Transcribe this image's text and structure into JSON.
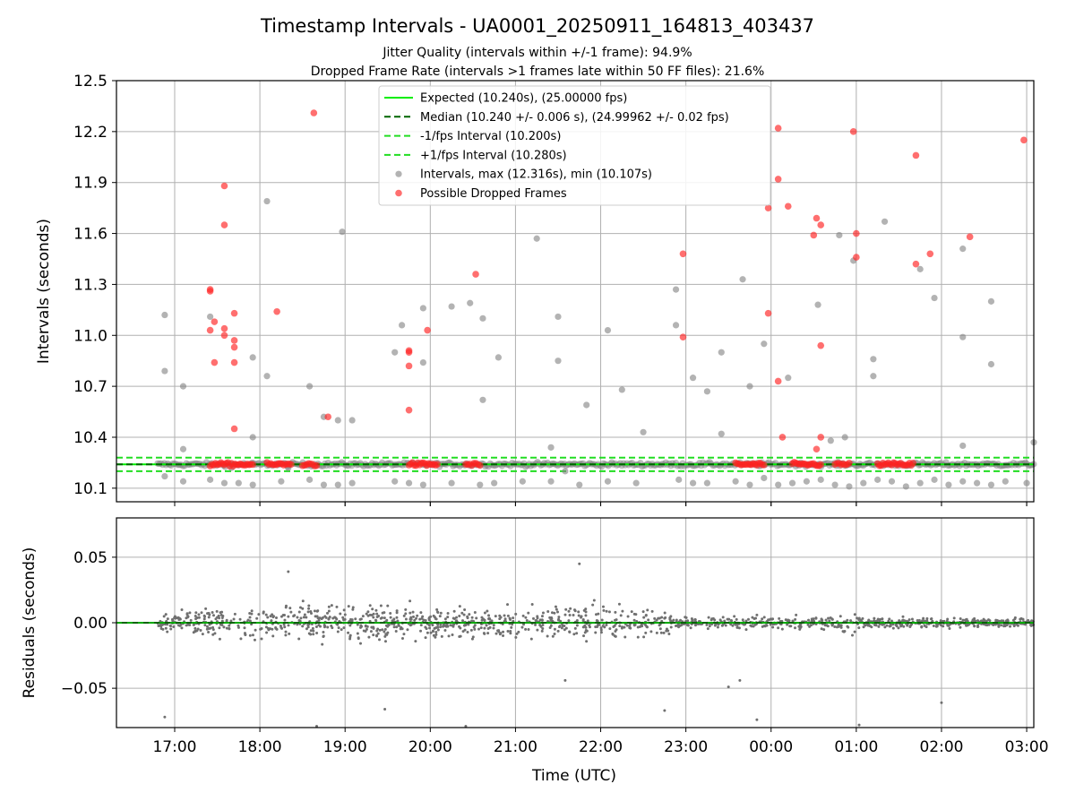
{
  "title": "Timestamp Intervals - UA0001_20250911_164813_403437",
  "subtitle_1": "Jitter Quality (intervals within +/-1 frame): 94.9%",
  "subtitle_2": "Dropped Frame Rate (intervals >1 frames late within 50 FF files): 21.6%",
  "colors": {
    "expected": "#00ee00",
    "median": "#006400",
    "interval_bounds": "#22dd22",
    "intervals": "#808080",
    "dropped": "#ff2222",
    "residuals": "#707070",
    "grid": "#b0b0b0"
  },
  "chart_data": [
    {
      "type": "scatter",
      "panel": "top",
      "ylabel": "Intervals (seconds)",
      "xlabel": "",
      "x_axis": "time",
      "xlim": [
        "16:19",
        "03:05"
      ],
      "ylim": [
        10.02,
        12.5
      ],
      "x_ticks": [
        "17:00",
        "18:00",
        "19:00",
        "20:00",
        "21:00",
        "22:00",
        "23:00",
        "00:00",
        "01:00",
        "02:00",
        "03:00"
      ],
      "y_ticks": [
        "10.1",
        "10.4",
        "10.7",
        "11.0",
        "11.3",
        "11.6",
        "11.9",
        "12.2",
        "12.5"
      ],
      "grid": true,
      "legend_position": "upper center",
      "legend": [
        {
          "label": "Expected (10.240s), (25.00000 fps)",
          "style": "line"
        },
        {
          "label": "Median (10.240 +/- 0.006 s), (24.99962 +/- 0.02 fps)",
          "style": "dashed-dark"
        },
        {
          "label": "-1/fps Interval (10.200s)",
          "style": "dashed"
        },
        {
          "label": "+1/fps Interval (10.280s)",
          "style": "dashed"
        },
        {
          "label": "Intervals, max (12.316s), min (10.107s)",
          "style": "gray-dot"
        },
        {
          "label": "Possible Dropped Frames",
          "style": "red-dot"
        }
      ],
      "reference_lines": {
        "expected": 10.24,
        "median": 10.24,
        "minus_1_fps": 10.2,
        "plus_1_fps": 10.28
      },
      "band": {
        "x_start": "16:48",
        "x_end": "03:05",
        "y_center": 10.24,
        "y_spread": 0.025
      },
      "dropped_clusters": [
        {
          "x_start": "17:25",
          "x_end": "17:55"
        },
        {
          "x_start": "18:05",
          "x_end": "18:22"
        },
        {
          "x_start": "18:30",
          "x_end": "18:40"
        },
        {
          "x_start": "19:45",
          "x_end": "20:05"
        },
        {
          "x_start": "20:25",
          "x_end": "20:35"
        },
        {
          "x_start": "23:35",
          "x_end": "23:55"
        },
        {
          "x_start": "00:15",
          "x_end": "00:35"
        },
        {
          "x_start": "00:45",
          "x_end": "00:55"
        },
        {
          "x_start": "01:15",
          "x_end": "01:40"
        }
      ],
      "intervals": [
        [
          "16:53",
          11.12
        ],
        [
          "16:53",
          10.79
        ],
        [
          "17:06",
          10.7
        ],
        [
          "17:06",
          10.33
        ],
        [
          "17:25",
          11.11
        ],
        [
          "17:40",
          10.22
        ],
        [
          "17:55",
          10.4
        ],
        [
          "17:55",
          10.87
        ],
        [
          "18:05",
          10.76
        ],
        [
          "18:05",
          11.79
        ],
        [
          "18:20",
          10.22
        ],
        [
          "18:35",
          10.7
        ],
        [
          "18:45",
          10.52
        ],
        [
          "18:55",
          10.5
        ],
        [
          "18:58",
          11.61
        ],
        [
          "19:05",
          10.5
        ],
        [
          "19:35",
          10.9
        ],
        [
          "19:40",
          11.06
        ],
        [
          "19:55",
          11.16
        ],
        [
          "19:55",
          10.84
        ],
        [
          "20:15",
          11.17
        ],
        [
          "20:28",
          11.19
        ],
        [
          "20:37",
          11.1
        ],
        [
          "20:37",
          10.62
        ],
        [
          "20:48",
          10.87
        ],
        [
          "21:15",
          11.57
        ],
        [
          "21:25",
          10.34
        ],
        [
          "21:30",
          11.11
        ],
        [
          "21:30",
          10.85
        ],
        [
          "21:35",
          10.2
        ],
        [
          "21:50",
          10.59
        ],
        [
          "22:05",
          11.03
        ],
        [
          "22:15",
          10.68
        ],
        [
          "22:30",
          10.43
        ],
        [
          "22:53",
          11.27
        ],
        [
          "22:53",
          11.06
        ],
        [
          "23:05",
          10.75
        ],
        [
          "23:15",
          10.67
        ],
        [
          "23:25",
          10.9
        ],
        [
          "23:25",
          10.42
        ],
        [
          "23:40",
          11.33
        ],
        [
          "23:45",
          10.7
        ],
        [
          "23:55",
          10.95
        ],
        [
          "00:12",
          10.75
        ],
        [
          "00:33",
          11.18
        ],
        [
          "00:42",
          10.38
        ],
        [
          "00:48",
          11.59
        ],
        [
          "00:52",
          10.4
        ],
        [
          "00:58",
          11.44
        ],
        [
          "01:12",
          10.86
        ],
        [
          "01:12",
          10.76
        ],
        [
          "01:20",
          11.67
        ],
        [
          "01:45",
          11.39
        ],
        [
          "01:55",
          11.22
        ],
        [
          "02:15",
          11.51
        ],
        [
          "02:15",
          10.99
        ],
        [
          "02:15",
          10.35
        ],
        [
          "02:35",
          11.2
        ],
        [
          "02:35",
          10.83
        ],
        [
          "03:05",
          10.37
        ]
      ],
      "dropped": [
        [
          "17:25",
          11.27
        ],
        [
          "17:25",
          11.26
        ],
        [
          "17:25",
          11.03
        ],
        [
          "17:28",
          11.08
        ],
        [
          "17:28",
          10.84
        ],
        [
          "17:35",
          11.88
        ],
        [
          "17:35",
          11.65
        ],
        [
          "17:35",
          11.04
        ],
        [
          "17:35",
          11.0
        ],
        [
          "17:42",
          11.13
        ],
        [
          "17:42",
          10.97
        ],
        [
          "17:42",
          10.93
        ],
        [
          "17:42",
          10.84
        ],
        [
          "17:42",
          10.45
        ],
        [
          "18:12",
          11.14
        ],
        [
          "18:38",
          12.31
        ],
        [
          "18:48",
          10.52
        ],
        [
          "19:45",
          10.91
        ],
        [
          "19:45",
          10.9
        ],
        [
          "19:45",
          10.82
        ],
        [
          "19:45",
          10.56
        ],
        [
          "19:58",
          11.03
        ],
        [
          "20:32",
          11.36
        ],
        [
          "22:58",
          11.48
        ],
        [
          "22:58",
          10.99
        ],
        [
          "23:58",
          11.75
        ],
        [
          "23:58",
          11.13
        ],
        [
          "00:05",
          12.22
        ],
        [
          "00:05",
          11.92
        ],
        [
          "00:05",
          10.73
        ],
        [
          "00:08",
          10.4
        ],
        [
          "00:12",
          11.76
        ],
        [
          "00:30",
          11.59
        ],
        [
          "00:32",
          11.69
        ],
        [
          "00:35",
          11.65
        ],
        [
          "00:35",
          10.94
        ],
        [
          "00:35",
          10.4
        ],
        [
          "00:32",
          10.33
        ],
        [
          "00:58",
          12.2
        ],
        [
          "01:00",
          11.6
        ],
        [
          "01:00",
          11.46
        ],
        [
          "01:42",
          11.42
        ],
        [
          "01:42",
          12.06
        ],
        [
          "01:52",
          11.48
        ],
        [
          "02:20",
          11.58
        ],
        [
          "02:58",
          12.15
        ]
      ],
      "low_outliers": [
        [
          "16:53",
          10.17
        ],
        [
          "17:06",
          10.14
        ],
        [
          "17:25",
          10.15
        ],
        [
          "17:35",
          10.13
        ],
        [
          "17:45",
          10.13
        ],
        [
          "17:55",
          10.12
        ],
        [
          "18:15",
          10.14
        ],
        [
          "18:35",
          10.15
        ],
        [
          "18:45",
          10.12
        ],
        [
          "18:55",
          10.12
        ],
        [
          "19:05",
          10.13
        ],
        [
          "19:35",
          10.14
        ],
        [
          "19:45",
          10.13
        ],
        [
          "19:55",
          10.12
        ],
        [
          "20:15",
          10.13
        ],
        [
          "20:35",
          10.12
        ],
        [
          "20:45",
          10.13
        ],
        [
          "21:05",
          10.14
        ],
        [
          "21:25",
          10.14
        ],
        [
          "21:45",
          10.12
        ],
        [
          "22:05",
          10.14
        ],
        [
          "22:25",
          10.13
        ],
        [
          "22:55",
          10.15
        ],
        [
          "23:05",
          10.13
        ],
        [
          "23:15",
          10.13
        ],
        [
          "23:35",
          10.14
        ],
        [
          "23:45",
          10.12
        ],
        [
          "23:55",
          10.16
        ],
        [
          "00:05",
          10.12
        ],
        [
          "00:15",
          10.13
        ],
        [
          "00:25",
          10.14
        ],
        [
          "00:35",
          10.15
        ],
        [
          "00:45",
          10.12
        ],
        [
          "00:55",
          10.11
        ],
        [
          "01:05",
          10.13
        ],
        [
          "01:15",
          10.15
        ],
        [
          "01:25",
          10.14
        ],
        [
          "01:35",
          10.11
        ],
        [
          "01:45",
          10.13
        ],
        [
          "01:55",
          10.15
        ],
        [
          "02:05",
          10.12
        ],
        [
          "02:15",
          10.14
        ],
        [
          "02:25",
          10.13
        ],
        [
          "02:35",
          10.12
        ],
        [
          "02:45",
          10.14
        ],
        [
          "03:00",
          10.13
        ]
      ]
    },
    {
      "type": "scatter",
      "panel": "bottom",
      "ylabel": "Residuals (seconds)",
      "xlabel": "Time (UTC)",
      "x_axis": "time",
      "xlim": [
        "16:19",
        "03:05"
      ],
      "ylim": [
        -0.08,
        0.08
      ],
      "x_ticks": [
        "17:00",
        "18:00",
        "19:00",
        "20:00",
        "21:00",
        "22:00",
        "23:00",
        "00:00",
        "01:00",
        "02:00",
        "03:00"
      ],
      "y_ticks": [
        "0.05",
        "0.00",
        "−0.05"
      ],
      "grid": true,
      "zero_line": 0.0,
      "spread_profile": [
        [
          "16:48",
          0.008
        ],
        [
          "17:20",
          0.02
        ],
        [
          "18:00",
          0.025
        ],
        [
          "19:00",
          0.022
        ],
        [
          "20:00",
          0.02
        ],
        [
          "21:00",
          0.02
        ],
        [
          "22:00",
          0.022
        ],
        [
          "22:45",
          0.018
        ],
        [
          "23:00",
          0.007
        ],
        [
          "00:45",
          0.008
        ],
        [
          "00:55",
          0.02
        ],
        [
          "01:05",
          0.007
        ],
        [
          "03:05",
          0.006
        ]
      ],
      "outliers": [
        [
          "16:53",
          -0.072
        ],
        [
          "18:40",
          -0.079
        ],
        [
          "19:28",
          -0.066
        ],
        [
          "20:25",
          -0.079
        ],
        [
          "22:45",
          -0.067
        ],
        [
          "23:30",
          -0.049
        ],
        [
          "23:38",
          -0.044
        ],
        [
          "23:50",
          -0.074
        ],
        [
          "01:02",
          -0.078
        ],
        [
          "02:00",
          -0.061
        ],
        [
          "21:35",
          -0.044
        ],
        [
          "21:45",
          0.045
        ],
        [
          "18:20",
          0.039
        ]
      ]
    }
  ]
}
